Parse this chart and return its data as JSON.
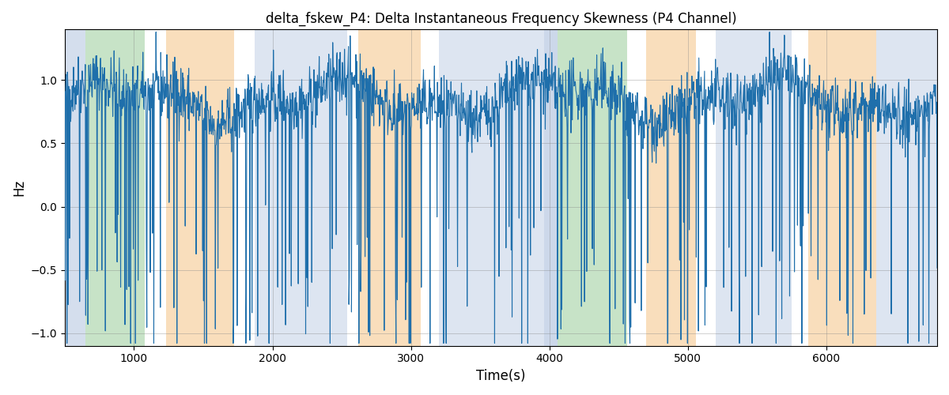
{
  "title": "delta_fskew_P4: Delta Instantaneous Frequency Skewness (P4 Channel)",
  "xlabel": "Time(s)",
  "ylabel": "Hz",
  "xlim": [
    500,
    6800
  ],
  "ylim": [
    -1.1,
    1.4
  ],
  "yticks": [
    -1.0,
    -0.5,
    0.0,
    0.5,
    1.0
  ],
  "xticks": [
    1000,
    2000,
    3000,
    4000,
    5000,
    6000
  ],
  "line_color": "#1f6fab",
  "line_width": 0.8,
  "figsize": [
    12.0,
    5.0
  ],
  "dpi": 100,
  "background_bands": [
    {
      "xmin": 500,
      "xmax": 650,
      "color": "#aabfdd",
      "alpha": 0.5
    },
    {
      "xmin": 650,
      "xmax": 1080,
      "color": "#90c990",
      "alpha": 0.5
    },
    {
      "xmin": 1080,
      "xmax": 1230,
      "color": "#ffffff",
      "alpha": 0.0
    },
    {
      "xmin": 1230,
      "xmax": 1720,
      "color": "#f5c890",
      "alpha": 0.6
    },
    {
      "xmin": 1720,
      "xmax": 1870,
      "color": "#ffffff",
      "alpha": 0.0
    },
    {
      "xmin": 1870,
      "xmax": 2540,
      "color": "#aabfdd",
      "alpha": 0.4
    },
    {
      "xmin": 2540,
      "xmax": 2620,
      "color": "#ffffff",
      "alpha": 0.0
    },
    {
      "xmin": 2620,
      "xmax": 3070,
      "color": "#f5c890",
      "alpha": 0.6
    },
    {
      "xmin": 3070,
      "xmax": 3200,
      "color": "#ffffff",
      "alpha": 0.0
    },
    {
      "xmin": 3200,
      "xmax": 3960,
      "color": "#aabfdd",
      "alpha": 0.4
    },
    {
      "xmin": 3960,
      "xmax": 4060,
      "color": "#aabfdd",
      "alpha": 0.6
    },
    {
      "xmin": 4060,
      "xmax": 4560,
      "color": "#90c990",
      "alpha": 0.5
    },
    {
      "xmin": 4560,
      "xmax": 4700,
      "color": "#ffffff",
      "alpha": 0.0
    },
    {
      "xmin": 4700,
      "xmax": 5060,
      "color": "#f5c890",
      "alpha": 0.6
    },
    {
      "xmin": 5060,
      "xmax": 5200,
      "color": "#ffffff",
      "alpha": 0.0
    },
    {
      "xmin": 5200,
      "xmax": 5750,
      "color": "#aabfdd",
      "alpha": 0.4
    },
    {
      "xmin": 5750,
      "xmax": 5870,
      "color": "#ffffff",
      "alpha": 0.0
    },
    {
      "xmin": 5870,
      "xmax": 6360,
      "color": "#f5c890",
      "alpha": 0.6
    },
    {
      "xmin": 6360,
      "xmax": 6800,
      "color": "#aabfdd",
      "alpha": 0.4
    }
  ],
  "seed": 42,
  "n_points": 2000
}
